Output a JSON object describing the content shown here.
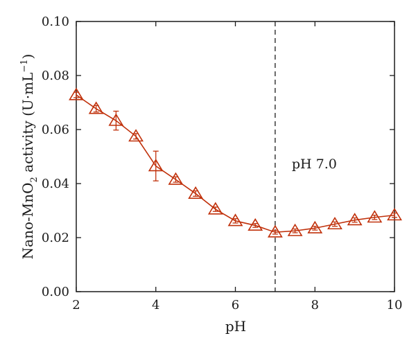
{
  "chart_data": {
    "type": "line",
    "title": "",
    "xlabel": "pH",
    "ylabel_parts": [
      "Nano-MnO",
      "2",
      " activity (U·mL",
      "−1",
      ")"
    ],
    "xlim": [
      2,
      10
    ],
    "ylim": [
      0.0,
      0.1
    ],
    "xticks": [
      "2",
      "4",
      "6",
      "8",
      "10"
    ],
    "yticks": [
      "0.00",
      "0.02",
      "0.04",
      "0.06",
      "0.08",
      "0.10"
    ],
    "grid": false,
    "marker": "open-triangle",
    "series_color": "#c0300a",
    "series": [
      {
        "x": [
          2,
          2.5,
          3,
          3.5,
          4,
          4.5,
          5,
          5.5,
          6,
          6.5,
          7,
          7.5,
          8,
          8.5,
          9,
          9.5,
          10
        ],
        "y": [
          0.0728,
          0.0677,
          0.0633,
          0.0575,
          0.0465,
          0.0415,
          0.0363,
          0.0305,
          0.0262,
          0.0245,
          0.022,
          0.0225,
          0.0235,
          0.025,
          0.0265,
          0.0275,
          0.0283
        ],
        "err": [
          0.001,
          0.0012,
          0.0035,
          0.001,
          0.0055,
          0.001,
          0.001,
          0.0008,
          0.0008,
          0.0007,
          0.0007,
          0.0007,
          0.0007,
          0.0008,
          0.0008,
          0.0008,
          0.0008
        ]
      }
    ],
    "reference_line": {
      "x": 7,
      "style": "dashed",
      "label": "pH 7.0"
    }
  }
}
